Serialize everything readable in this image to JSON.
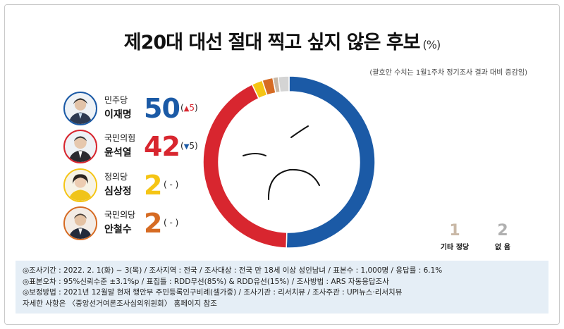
{
  "title": "제20대 대선 절대 찍고 싶지 않은 후보",
  "title_unit": "(%)",
  "note": "(괄호안 수치는 1월1주차 정기조사 결과 대비 증감임)",
  "candidates": [
    {
      "party": "민주당",
      "name": "이재명",
      "value": "50",
      "change_dir": "▲",
      "change": "5",
      "color": "#1b5aa6",
      "change_color": "#d8262f",
      "ring": "#1b5aa6"
    },
    {
      "party": "국민의힘",
      "name": "윤석열",
      "value": "42",
      "change_dir": "▼",
      "change": "5",
      "color": "#d8262f",
      "change_color": "#1b5aa6",
      "ring": "#d8262f"
    },
    {
      "party": "정의당",
      "name": "심상정",
      "value": "2",
      "change_dir": "",
      "change": "-",
      "color": "#f5c515",
      "change_color": "#222222",
      "ring": "#f5c515"
    },
    {
      "party": "국민의당",
      "name": "안철수",
      "value": "2",
      "change_dir": "",
      "change": "-",
      "color": "#d66b23",
      "change_color": "#222222",
      "ring": "#d66b23"
    }
  ],
  "others": [
    {
      "value": "1",
      "label": "기타 정당",
      "color": "#c9b8a6"
    },
    {
      "value": "2",
      "label": "없 음",
      "color": "#b8b8b8"
    }
  ],
  "chart_data": {
    "type": "pie",
    "title": "제20대 대선 절대 찍고 싶지 않은 후보",
    "unit": "%",
    "categories": [
      "이재명",
      "윤석열",
      "심상정",
      "안철수",
      "기타 정당",
      "없음"
    ],
    "values": [
      50,
      42,
      2,
      2,
      1,
      2
    ],
    "colors": [
      "#1b5aa6",
      "#d8262f",
      "#f5c515",
      "#d66b23",
      "#c9b8a6",
      "#d4d4d4"
    ],
    "changes": [
      "▲5",
      "▼5",
      "-",
      "-",
      "",
      ""
    ]
  },
  "info_lines": [
    "◎조사기간 : 2022. 2. 1(화) ~ 3(목) / 조사지역 : 전국 / 조사대상 : 전국 만 18세 이상 성인남녀 / 표본수 : 1,000명 / 응답률 : 6.1%",
    "◎표본오차 : 95%신뢰수준 ±3.1%p / 표집틀 : RDD무선(85%) & RDD유선(15%) / 조사방법 : ARS 자동응답조사",
    "◎보정방법 : 2021년 12월말 현재 행안부 주민등록인구비례(셀가중) / 조사기관 : 리서치뷰 / 조사주관 : UPI뉴스·리서치뷰",
    "자세한 사항은 〈중앙선거여론조사심의위원회〉 홈페이지 참조"
  ]
}
